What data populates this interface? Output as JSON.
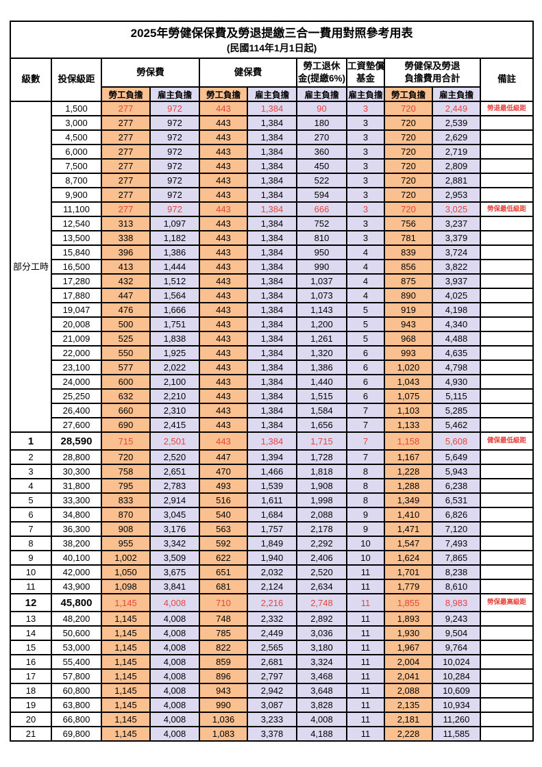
{
  "title": "2025年勞健保保費及勞退提繳三合一費用對照參考用表",
  "subtitle": "(民國114年1月1日起)",
  "header": {
    "level": "級數",
    "bracket": "投保級距",
    "labor_insurance": "勞保費",
    "health_insurance": "健保費",
    "pension_line1": "勞工退休",
    "pension_line2": "金(提繳6%)",
    "wage_fund_line1": "工資墊償",
    "wage_fund_line2": "基金",
    "total_line1": "勞健保及勞退",
    "total_line2": "負擔費用合計",
    "remark": "備註",
    "employee_label": "勞工負擔",
    "employer_label": "雇主負擔"
  },
  "part_time_label": "部分工時",
  "part_time_rowspan": 23,
  "value_payers": [
    "employee",
    "employer",
    "employee",
    "employer",
    "employer",
    "employer",
    "employee",
    "employer"
  ],
  "colors": {
    "employee_bg": "#FAC090",
    "employer_bg": "#DDD9F1",
    "red_text": "#E8443C",
    "border": "#000000"
  },
  "rows": [
    {
      "level": "",
      "bracket": "1,500",
      "values": [
        "277",
        "972",
        "443",
        "1,384",
        "90",
        "3",
        "720",
        "2,449"
      ],
      "remark": "勞退最低級距",
      "red": true,
      "emph": false
    },
    {
      "level": "",
      "bracket": "3,000",
      "values": [
        "277",
        "972",
        "443",
        "1,384",
        "180",
        "3",
        "720",
        "2,539"
      ],
      "remark": "",
      "red": false,
      "emph": false
    },
    {
      "level": "",
      "bracket": "4,500",
      "values": [
        "277",
        "972",
        "443",
        "1,384",
        "270",
        "3",
        "720",
        "2,629"
      ],
      "remark": "",
      "red": false,
      "emph": false
    },
    {
      "level": "",
      "bracket": "6,000",
      "values": [
        "277",
        "972",
        "443",
        "1,384",
        "360",
        "3",
        "720",
        "2,719"
      ],
      "remark": "",
      "red": false,
      "emph": false
    },
    {
      "level": "",
      "bracket": "7,500",
      "values": [
        "277",
        "972",
        "443",
        "1,384",
        "450",
        "3",
        "720",
        "2,809"
      ],
      "remark": "",
      "red": false,
      "emph": false
    },
    {
      "level": "",
      "bracket": "8,700",
      "values": [
        "277",
        "972",
        "443",
        "1,384",
        "522",
        "3",
        "720",
        "2,881"
      ],
      "remark": "",
      "red": false,
      "emph": false
    },
    {
      "level": "",
      "bracket": "9,900",
      "values": [
        "277",
        "972",
        "443",
        "1,384",
        "594",
        "3",
        "720",
        "2,953"
      ],
      "remark": "",
      "red": false,
      "emph": false
    },
    {
      "level": "",
      "bracket": "11,100",
      "values": [
        "277",
        "972",
        "443",
        "1,384",
        "666",
        "3",
        "720",
        "3,025"
      ],
      "remark": "勞保最低級距",
      "red": true,
      "emph": false
    },
    {
      "level": "",
      "bracket": "12,540",
      "values": [
        "313",
        "1,097",
        "443",
        "1,384",
        "752",
        "3",
        "756",
        "3,237"
      ],
      "remark": "",
      "red": false,
      "emph": false
    },
    {
      "level": "",
      "bracket": "13,500",
      "values": [
        "338",
        "1,182",
        "443",
        "1,384",
        "810",
        "3",
        "781",
        "3,379"
      ],
      "remark": "",
      "red": false,
      "emph": false
    },
    {
      "level": "",
      "bracket": "15,840",
      "values": [
        "396",
        "1,386",
        "443",
        "1,384",
        "950",
        "4",
        "839",
        "3,724"
      ],
      "remark": "",
      "red": false,
      "emph": false
    },
    {
      "level": "",
      "bracket": "16,500",
      "values": [
        "413",
        "1,444",
        "443",
        "1,384",
        "990",
        "4",
        "856",
        "3,822"
      ],
      "remark": "",
      "red": false,
      "emph": false
    },
    {
      "level": "",
      "bracket": "17,280",
      "values": [
        "432",
        "1,512",
        "443",
        "1,384",
        "1,037",
        "4",
        "875",
        "3,937"
      ],
      "remark": "",
      "red": false,
      "emph": false
    },
    {
      "level": "",
      "bracket": "17,880",
      "values": [
        "447",
        "1,564",
        "443",
        "1,384",
        "1,073",
        "4",
        "890",
        "4,025"
      ],
      "remark": "",
      "red": false,
      "emph": false
    },
    {
      "level": "",
      "bracket": "19,047",
      "values": [
        "476",
        "1,666",
        "443",
        "1,384",
        "1,143",
        "5",
        "919",
        "4,198"
      ],
      "remark": "",
      "red": false,
      "emph": false
    },
    {
      "level": "",
      "bracket": "20,008",
      "values": [
        "500",
        "1,751",
        "443",
        "1,384",
        "1,200",
        "5",
        "943",
        "4,340"
      ],
      "remark": "",
      "red": false,
      "emph": false
    },
    {
      "level": "",
      "bracket": "21,009",
      "values": [
        "525",
        "1,838",
        "443",
        "1,384",
        "1,261",
        "5",
        "968",
        "4,488"
      ],
      "remark": "",
      "red": false,
      "emph": false
    },
    {
      "level": "",
      "bracket": "22,000",
      "values": [
        "550",
        "1,925",
        "443",
        "1,384",
        "1,320",
        "6",
        "993",
        "4,635"
      ],
      "remark": "",
      "red": false,
      "emph": false
    },
    {
      "level": "",
      "bracket": "23,100",
      "values": [
        "577",
        "2,022",
        "443",
        "1,384",
        "1,386",
        "6",
        "1,020",
        "4,798"
      ],
      "remark": "",
      "red": false,
      "emph": false
    },
    {
      "level": "",
      "bracket": "24,000",
      "values": [
        "600",
        "2,100",
        "443",
        "1,384",
        "1,440",
        "6",
        "1,043",
        "4,930"
      ],
      "remark": "",
      "red": false,
      "emph": false
    },
    {
      "level": "",
      "bracket": "25,250",
      "values": [
        "632",
        "2,210",
        "443",
        "1,384",
        "1,515",
        "6",
        "1,075",
        "5,115"
      ],
      "remark": "",
      "red": false,
      "emph": false
    },
    {
      "level": "",
      "bracket": "26,400",
      "values": [
        "660",
        "2,310",
        "443",
        "1,384",
        "1,584",
        "7",
        "1,103",
        "5,285"
      ],
      "remark": "",
      "red": false,
      "emph": false
    },
    {
      "level": "",
      "bracket": "27,600",
      "values": [
        "690",
        "2,415",
        "443",
        "1,384",
        "1,656",
        "7",
        "1,133",
        "5,462"
      ],
      "remark": "",
      "red": false,
      "emph": false
    },
    {
      "level": "1",
      "bracket": "28,590",
      "values": [
        "715",
        "2,501",
        "443",
        "1,384",
        "1,715",
        "7",
        "1,158",
        "5,608"
      ],
      "remark": "健保最低級距",
      "red": true,
      "emph": true
    },
    {
      "level": "2",
      "bracket": "28,800",
      "values": [
        "720",
        "2,520",
        "447",
        "1,394",
        "1,728",
        "7",
        "1,167",
        "5,649"
      ],
      "remark": "",
      "red": false,
      "emph": false
    },
    {
      "level": "3",
      "bracket": "30,300",
      "values": [
        "758",
        "2,651",
        "470",
        "1,466",
        "1,818",
        "8",
        "1,228",
        "5,943"
      ],
      "remark": "",
      "red": false,
      "emph": false
    },
    {
      "level": "4",
      "bracket": "31,800",
      "values": [
        "795",
        "2,783",
        "493",
        "1,539",
        "1,908",
        "8",
        "1,288",
        "6,238"
      ],
      "remark": "",
      "red": false,
      "emph": false
    },
    {
      "level": "5",
      "bracket": "33,300",
      "values": [
        "833",
        "2,914",
        "516",
        "1,611",
        "1,998",
        "8",
        "1,349",
        "6,531"
      ],
      "remark": "",
      "red": false,
      "emph": false
    },
    {
      "level": "6",
      "bracket": "34,800",
      "values": [
        "870",
        "3,045",
        "540",
        "1,684",
        "2,088",
        "9",
        "1,410",
        "6,826"
      ],
      "remark": "",
      "red": false,
      "emph": false
    },
    {
      "level": "7",
      "bracket": "36,300",
      "values": [
        "908",
        "3,176",
        "563",
        "1,757",
        "2,178",
        "9",
        "1,471",
        "7,120"
      ],
      "remark": "",
      "red": false,
      "emph": false
    },
    {
      "level": "8",
      "bracket": "38,200",
      "values": [
        "955",
        "3,342",
        "592",
        "1,849",
        "2,292",
        "10",
        "1,547",
        "7,493"
      ],
      "remark": "",
      "red": false,
      "emph": false
    },
    {
      "level": "9",
      "bracket": "40,100",
      "values": [
        "1,002",
        "3,509",
        "622",
        "1,940",
        "2,406",
        "10",
        "1,624",
        "7,865"
      ],
      "remark": "",
      "red": false,
      "emph": false
    },
    {
      "level": "10",
      "bracket": "42,000",
      "values": [
        "1,050",
        "3,675",
        "651",
        "2,032",
        "2,520",
        "11",
        "1,701",
        "8,238"
      ],
      "remark": "",
      "red": false,
      "emph": false
    },
    {
      "level": "11",
      "bracket": "43,900",
      "values": [
        "1,098",
        "3,841",
        "681",
        "2,124",
        "2,634",
        "11",
        "1,779",
        "8,610"
      ],
      "remark": "",
      "red": false,
      "emph": false
    },
    {
      "level": "12",
      "bracket": "45,800",
      "values": [
        "1,145",
        "4,008",
        "710",
        "2,216",
        "2,748",
        "11",
        "1,855",
        "8,983"
      ],
      "remark": "勞保最高級距",
      "red": true,
      "emph": true
    },
    {
      "level": "13",
      "bracket": "48,200",
      "values": [
        "1,145",
        "4,008",
        "748",
        "2,332",
        "2,892",
        "11",
        "1,893",
        "9,243"
      ],
      "remark": "",
      "red": false,
      "emph": false
    },
    {
      "level": "14",
      "bracket": "50,600",
      "values": [
        "1,145",
        "4,008",
        "785",
        "2,449",
        "3,036",
        "11",
        "1,930",
        "9,504"
      ],
      "remark": "",
      "red": false,
      "emph": false
    },
    {
      "level": "15",
      "bracket": "53,000",
      "values": [
        "1,145",
        "4,008",
        "822",
        "2,565",
        "3,180",
        "11",
        "1,967",
        "9,764"
      ],
      "remark": "",
      "red": false,
      "emph": false
    },
    {
      "level": "16",
      "bracket": "55,400",
      "values": [
        "1,145",
        "4,008",
        "859",
        "2,681",
        "3,324",
        "11",
        "2,004",
        "10,024"
      ],
      "remark": "",
      "red": false,
      "emph": false
    },
    {
      "level": "17",
      "bracket": "57,800",
      "values": [
        "1,145",
        "4,008",
        "896",
        "2,797",
        "3,468",
        "11",
        "2,041",
        "10,284"
      ],
      "remark": "",
      "red": false,
      "emph": false
    },
    {
      "level": "18",
      "bracket": "60,800",
      "values": [
        "1,145",
        "4,008",
        "943",
        "2,942",
        "3,648",
        "11",
        "2,088",
        "10,609"
      ],
      "remark": "",
      "red": false,
      "emph": false
    },
    {
      "level": "19",
      "bracket": "63,800",
      "values": [
        "1,145",
        "4,008",
        "990",
        "3,087",
        "3,828",
        "11",
        "2,135",
        "10,934"
      ],
      "remark": "",
      "red": false,
      "emph": false
    },
    {
      "level": "20",
      "bracket": "66,800",
      "values": [
        "1,145",
        "4,008",
        "1,036",
        "3,233",
        "4,008",
        "11",
        "2,181",
        "11,260"
      ],
      "remark": "",
      "red": false,
      "emph": false
    },
    {
      "level": "21",
      "bracket": "69,800",
      "values": [
        "1,145",
        "4,008",
        "1,083",
        "3,378",
        "4,188",
        "11",
        "2,228",
        "11,585"
      ],
      "remark": "",
      "red": false,
      "emph": false
    }
  ]
}
